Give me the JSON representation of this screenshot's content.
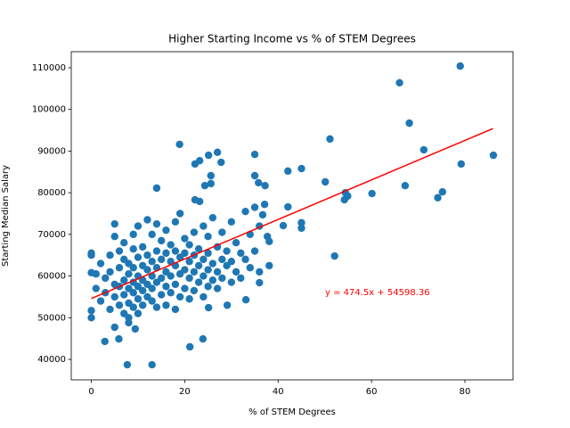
{
  "chart_data": {
    "type": "scatter",
    "title": "Higher Starting Income vs % of STEM Degrees",
    "xlabel": "% of STEM Degrees",
    "ylabel": "Starting Median Salary",
    "color": "#1f77b4",
    "x": [
      66,
      79,
      68.1,
      71.2,
      79.2,
      86.1,
      67.2,
      75.2,
      74.2,
      60.1,
      54.4,
      54.2,
      54.9,
      50.1,
      51.1,
      52.1,
      45,
      45,
      45,
      42.1,
      42.1,
      41.1,
      18.9,
      27,
      25.1,
      35,
      35.8,
      37.2,
      35,
      37.1,
      7.7,
      13,
      21.1,
      23.9,
      2.9,
      5.9,
      0,
      0,
      0,
      0,
      0,
      14,
      22.2,
      23.2,
      24.3,
      25.6,
      25.6,
      27.8,
      22.2,
      23.2,
      36.7,
      37.7,
      38.1,
      38.1,
      36,
      33.1,
      29.1,
      25.1,
      5,
      8,
      9.4,
      1,
      1,
      2,
      2,
      3,
      3,
      4,
      4,
      4,
      5,
      5,
      5,
      5,
      6,
      6,
      6,
      6,
      7,
      7,
      7,
      7,
      7,
      8,
      8,
      8,
      8,
      8,
      9,
      9,
      9,
      9,
      9,
      9,
      10,
      10,
      10,
      10,
      10,
      10,
      11,
      11,
      11,
      11,
      11,
      12,
      12,
      12,
      12,
      12,
      13,
      13,
      13,
      13,
      13,
      14,
      14,
      14,
      14,
      14,
      15,
      15,
      15,
      15,
      16,
      16,
      16,
      16,
      16,
      17,
      17,
      17,
      17,
      18,
      18,
      18,
      18,
      18,
      19,
      19,
      19,
      19,
      20,
      20,
      20,
      20,
      21,
      21,
      21,
      21,
      22,
      22,
      22,
      22,
      23,
      23,
      23,
      24,
      24,
      24,
      24,
      25,
      25,
      25,
      25,
      26,
      26,
      26,
      27,
      27,
      27,
      28,
      28,
      28,
      29,
      29,
      30,
      30,
      30,
      31,
      31,
      32,
      32,
      33,
      33,
      34,
      34,
      35,
      35,
      36,
      36
    ],
    "values": [
      106400,
      110400,
      96700,
      90300,
      86900,
      89000,
      81700,
      80200,
      78800,
      79800,
      80000,
      78300,
      79200,
      82600,
      92900,
      64800,
      71500,
      72800,
      85800,
      85200,
      76600,
      72100,
      91600,
      89700,
      89000,
      89200,
      82400,
      81700,
      84100,
      77200,
      38700,
      38700,
      43000,
      44900,
      44300,
      44900,
      50000,
      51700,
      65500,
      65000,
      60800,
      81100,
      78300,
      77900,
      81700,
      82200,
      84100,
      87300,
      86900,
      87700,
      74700,
      69500,
      68300,
      62500,
      58400,
      54300,
      53000,
      52400,
      47700,
      48800,
      47300,
      57000,
      60500,
      54000,
      63000,
      56000,
      59500,
      52000,
      61000,
      65000,
      55000,
      58000,
      69500,
      72500,
      53000,
      57500,
      62000,
      66000,
      51000,
      55500,
      59000,
      64000,
      68000,
      50000,
      53500,
      57000,
      60500,
      63000,
      52500,
      56000,
      58500,
      62000,
      66500,
      70000,
      51000,
      54500,
      57500,
      60000,
      64500,
      72000,
      53000,
      56500,
      59000,
      62500,
      67000,
      55000,
      58000,
      61500,
      65000,
      73500,
      54000,
      57000,
      60000,
      63500,
      70000,
      52500,
      58500,
      62000,
      66000,
      72500,
      55500,
      59500,
      64000,
      68500,
      53000,
      57500,
      61000,
      65500,
      71000,
      56000,
      60000,
      63500,
      67500,
      52000,
      58000,
      62500,
      66000,
      73000,
      55000,
      60500,
      64500,
      75000,
      57000,
      61500,
      65500,
      69000,
      54500,
      59500,
      63500,
      67500,
      56500,
      61000,
      65000,
      70500,
      58500,
      62500,
      66500,
      55000,
      60000,
      64000,
      72000,
      57500,
      61500,
      65500,
      69500,
      59000,
      63000,
      74000,
      57000,
      61000,
      67000,
      59500,
      64000,
      70500,
      62500,
      66000,
      58500,
      63500,
      73000,
      61000,
      68000,
      59500,
      65500,
      64000,
      75500,
      62000,
      70000,
      66000,
      76500,
      61000,
      72000
    ],
    "fit_line": {
      "x": [
        0,
        86
      ],
      "values": [
        54598.36,
        95405.36
      ],
      "color": "#ff0000"
    },
    "annotation": {
      "text": "y = 474.5x + 54598.36",
      "color": "#ff0000"
    },
    "xlim": [
      -4.3,
      90.3
    ],
    "ylim": [
      35076,
      113853
    ],
    "xticks": [
      0,
      20,
      40,
      60,
      80
    ],
    "yticks": [
      40000,
      50000,
      60000,
      70000,
      80000,
      90000,
      100000,
      110000
    ]
  }
}
